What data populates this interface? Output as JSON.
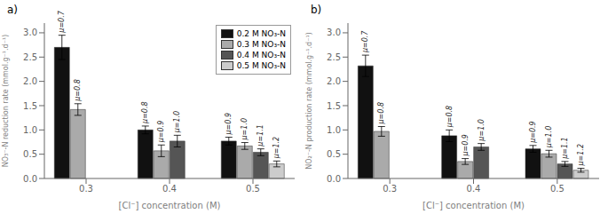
{
  "chart_data": [
    {
      "type": "bar",
      "title": "a)",
      "ylabel": "NO₃⁻-N reduction rate (mmol.g⁻¹.d⁻¹)",
      "xlabel": "[Cl⁻] concentration (M)",
      "categories": [
        "0.3",
        "0.4",
        "0.5"
      ],
      "series": [
        {
          "name": "0.2 M NO₃-N",
          "color": "#111111",
          "values": [
            2.7,
            1.0,
            0.77
          ],
          "errors": [
            0.25,
            0.08,
            0.08
          ],
          "annotations": [
            "μ=0.7",
            "μ=0.8",
            "μ=0.9"
          ]
        },
        {
          "name": "0.3 M NO₃-N",
          "color": "#aaaaaa",
          "values": [
            1.42,
            0.57,
            0.67
          ],
          "errors": [
            0.12,
            0.12,
            0.07
          ],
          "annotations": [
            "μ=0.8",
            "μ=0.9",
            "μ=1.0"
          ]
        },
        {
          "name": "0.4 M NO₃-N",
          "color": "#555555",
          "values": [
            null,
            0.77,
            0.54
          ],
          "errors": [
            null,
            0.12,
            0.07
          ],
          "annotations": [
            null,
            "μ=1.0",
            "μ=1.1"
          ]
        },
        {
          "name": "0.5 M NO₃-N",
          "color": "#cccccc",
          "values": [
            null,
            null,
            0.3
          ],
          "errors": [
            null,
            null,
            0.06
          ],
          "annotations": [
            null,
            null,
            "μ=1.2"
          ]
        }
      ],
      "ylim": [
        0,
        3.2
      ],
      "yticks": [
        {
          "value": 0,
          "label": "0.0"
        },
        0.5,
        {
          "value": 1,
          "label": "1.0"
        },
        1.5,
        {
          "value": 2,
          "label": "2.0"
        },
        2.5,
        {
          "value": 3,
          "label": "3.0"
        }
      ],
      "grid": false,
      "legend": "upper right"
    },
    {
      "type": "bar",
      "title": "b)",
      "ylabel": "NO₂⁻-N production rate (mmol.g⁻¹.d⁻¹)",
      "xlabel": "[Cl⁻] concentration (M)",
      "categories": [
        "0.3",
        "0.4",
        "0.5"
      ],
      "series": [
        {
          "name": "0.2 M NO₃-N",
          "color": "#111111",
          "values": [
            2.32,
            0.88,
            0.61
          ],
          "errors": [
            0.22,
            0.12,
            0.07
          ],
          "annotations": [
            "μ=0.7",
            "μ=0.8",
            "μ=0.9"
          ]
        },
        {
          "name": "0.3 M NO₃-N",
          "color": "#aaaaaa",
          "values": [
            0.97,
            0.35,
            0.51
          ],
          "errors": [
            0.1,
            0.06,
            0.07
          ],
          "annotations": [
            "μ=0.8",
            "μ=0.9",
            "μ=1.0"
          ]
        },
        {
          "name": "0.4 M NO₃-N",
          "color": "#555555",
          "values": [
            null,
            0.65,
            0.3
          ],
          "errors": [
            null,
            0.07,
            0.05
          ],
          "annotations": [
            null,
            "μ=1.0",
            "μ=1.1"
          ]
        },
        {
          "name": "0.5 M NO₃-N",
          "color": "#cccccc",
          "values": [
            null,
            null,
            0.17
          ],
          "errors": [
            null,
            null,
            0.04
          ],
          "annotations": [
            null,
            null,
            "μ=1.2"
          ]
        }
      ],
      "ylim": [
        0,
        3.2
      ],
      "yticks": [
        {
          "value": 0,
          "label": "0.0"
        },
        0.5,
        {
          "value": 1,
          "label": "1.0"
        },
        1.5,
        {
          "value": 2,
          "label": "2.0"
        },
        2.5,
        {
          "value": 3,
          "label": "3.0"
        }
      ],
      "grid": false
    }
  ]
}
